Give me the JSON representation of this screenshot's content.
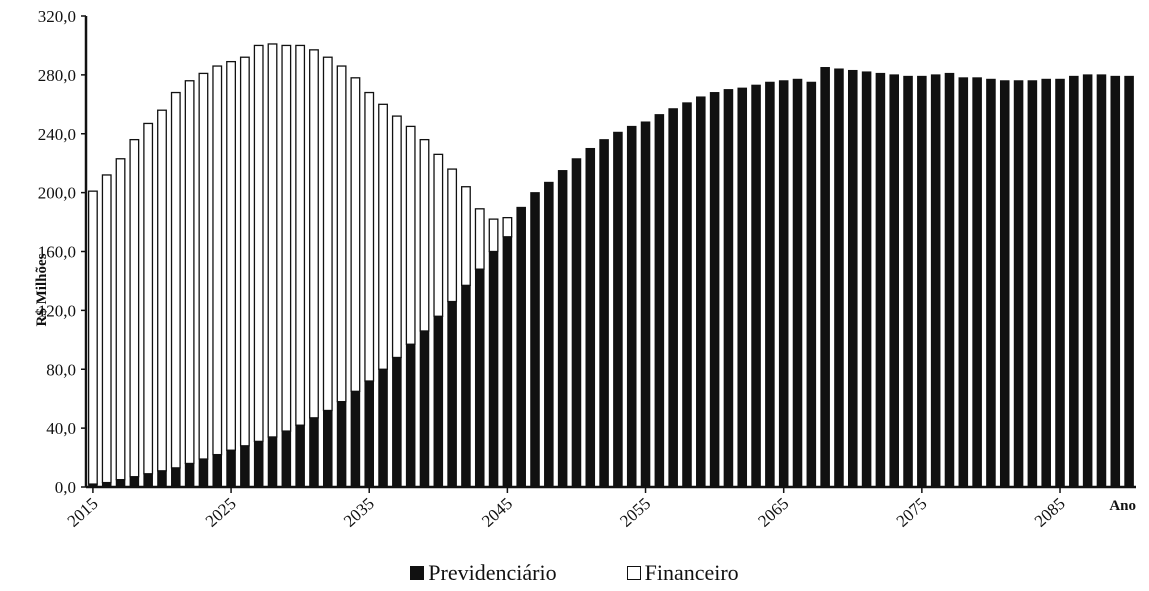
{
  "chart_data": {
    "type": "bar",
    "stacked": true,
    "ylabel": "R$ Milhões",
    "xlabel": "Ano",
    "ylim": [
      0,
      320
    ],
    "y_ticks": [
      "0,0",
      "40,0",
      "80,0",
      "120,0",
      "160,0",
      "200,0",
      "240,0",
      "280,0",
      "320,0"
    ],
    "x_ticks": [
      "2015",
      "2025",
      "2035",
      "2045",
      "2055",
      "2065",
      "2075",
      "2085"
    ],
    "x": [
      2015,
      2016,
      2017,
      2018,
      2019,
      2020,
      2021,
      2022,
      2023,
      2024,
      2025,
      2026,
      2027,
      2028,
      2029,
      2030,
      2031,
      2032,
      2033,
      2034,
      2035,
      2036,
      2037,
      2038,
      2039,
      2040,
      2041,
      2042,
      2043,
      2044,
      2045,
      2046,
      2047,
      2048,
      2049,
      2050,
      2051,
      2052,
      2053,
      2054,
      2055,
      2056,
      2057,
      2058,
      2059,
      2060,
      2061,
      2062,
      2063,
      2064,
      2065,
      2066,
      2067,
      2068,
      2069,
      2070,
      2071,
      2072,
      2073,
      2074,
      2075,
      2076,
      2077,
      2078,
      2079,
      2080,
      2081,
      2082,
      2083,
      2084,
      2085,
      2086,
      2087,
      2088,
      2089,
      2090
    ],
    "series": [
      {
        "name": "Previdenciário",
        "color": "#111111",
        "values": [
          2,
          3,
          5,
          7,
          9,
          11,
          13,
          16,
          19,
          22,
          25,
          28,
          31,
          34,
          38,
          42,
          47,
          52,
          58,
          65,
          72,
          80,
          88,
          97,
          106,
          116,
          126,
          137,
          148,
          160,
          170,
          190,
          200,
          207,
          215,
          223,
          230,
          236,
          241,
          245,
          248,
          253,
          257,
          261,
          265,
          268,
          270,
          271,
          273,
          275,
          276,
          277,
          275,
          285,
          284,
          283,
          282,
          281,
          280,
          279,
          279,
          280,
          281,
          278,
          278,
          277,
          276,
          276,
          276,
          277,
          277,
          279,
          280,
          280,
          279,
          279
        ]
      },
      {
        "name": "Financeiro",
        "color": "#ffffff",
        "values": [
          199,
          209,
          218,
          229,
          238,
          245,
          255,
          260,
          262,
          264,
          264,
          264,
          269,
          267,
          262,
          258,
          250,
          240,
          228,
          213,
          196,
          180,
          164,
          148,
          130,
          110,
          90,
          67,
          41,
          22,
          13,
          0,
          0,
          0,
          0,
          0,
          0,
          0,
          0,
          0,
          0,
          0,
          0,
          0,
          0,
          0,
          0,
          0,
          0,
          0,
          0,
          0,
          0,
          0,
          0,
          0,
          0,
          0,
          0,
          0,
          0,
          0,
          0,
          0,
          0,
          0,
          0,
          0,
          0,
          0,
          0,
          0,
          0,
          0,
          0,
          0
        ]
      }
    ],
    "legend_position": "bottom",
    "grid": false
  },
  "legend": {
    "items": [
      {
        "label": "Previdenciário",
        "color": "#111111"
      },
      {
        "label": "Financeiro",
        "color": "#ffffff"
      }
    ]
  }
}
